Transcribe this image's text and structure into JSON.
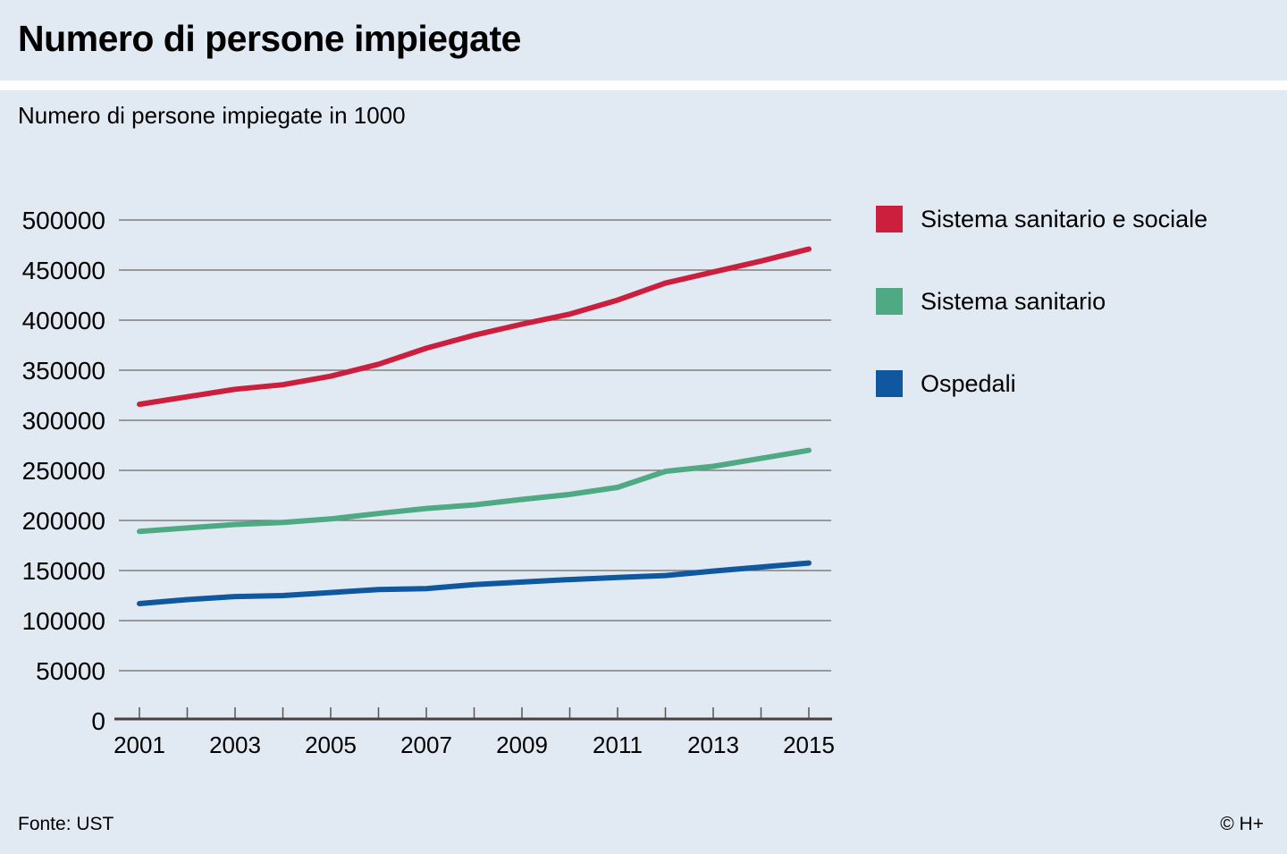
{
  "header": {
    "title": "Numero di persone impiegate"
  },
  "subtitle": "Numero di persone impiegate in 1000",
  "footer": {
    "source": "Fonte: UST",
    "copyright": "© H+"
  },
  "colors": {
    "background": "#e1e9f2",
    "separator": "#ffffff",
    "gridline": "#6f6a66",
    "axis": "#46413c",
    "tick": "#5a5550",
    "text": "#000000"
  },
  "chart_data": {
    "type": "line",
    "title": "Numero di persone impiegate",
    "subtitle": "Numero di persone impiegate in 1000",
    "xlabel": "",
    "ylabel": "",
    "x": [
      2001,
      2002,
      2003,
      2004,
      2005,
      2006,
      2007,
      2008,
      2009,
      2010,
      2011,
      2012,
      2013,
      2014,
      2015
    ],
    "x_tick_labels": [
      2001,
      2003,
      2005,
      2007,
      2009,
      2011,
      2013,
      2015
    ],
    "ylim": [
      0,
      500000
    ],
    "y_tick_step": 50000,
    "y_tick_labels": [
      "0",
      "50000",
      "100000",
      "150000",
      "200000",
      "250000",
      "300000",
      "350000",
      "400000",
      "450000",
      "500000"
    ],
    "grid": true,
    "legend_position": "right",
    "series": [
      {
        "name": "Sistema sanitario e sociale",
        "color": "#cb1f3d",
        "values": [
          316000,
          323500,
          331000,
          335500,
          344000,
          356000,
          372000,
          385000,
          396000,
          406000,
          420000,
          437000,
          448000,
          459000,
          471000
        ]
      },
      {
        "name": "Sistema sanitario",
        "color": "#4fa983",
        "values": [
          189000,
          192500,
          196000,
          198000,
          201500,
          207000,
          212000,
          215500,
          221000,
          226000,
          233000,
          249000,
          254000,
          262000,
          270000
        ]
      },
      {
        "name": "Ospedali",
        "color": "#0f579f",
        "values": [
          117000,
          121000,
          124000,
          125000,
          128000,
          131000,
          132000,
          136000,
          138500,
          141000,
          143000,
          145000,
          149500,
          153500,
          157500
        ]
      }
    ]
  }
}
